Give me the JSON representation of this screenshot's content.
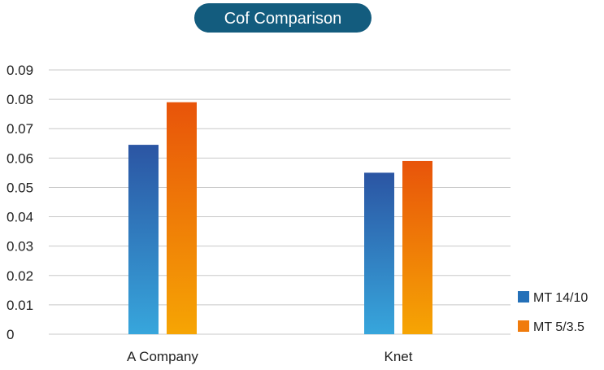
{
  "chart_data": {
    "type": "bar",
    "title": "Cof Comparison",
    "xlabel": "",
    "ylabel": "",
    "categories": [
      "A Company",
      "Knet"
    ],
    "series": [
      {
        "name": "MT 14/10",
        "values": [
          0.0645,
          0.055
        ]
      },
      {
        "name": "MT 5/3.5",
        "values": [
          0.079,
          0.059
        ]
      }
    ],
    "ylim": [
      0,
      0.09
    ],
    "yticks": [
      "0",
      "0.01",
      "0.02",
      "0.03",
      "0.04",
      "0.05",
      "0.06",
      "0.07",
      "0.08",
      "0.09"
    ],
    "grid": true,
    "legend_position": "bottom-right"
  },
  "colors": {
    "title_badge": "#135c7e",
    "grid": "#c8c8c8",
    "series": [
      {
        "top": "#2b55a3",
        "bottom": "#37a6dc",
        "legend": "#2470b8"
      },
      {
        "top": "#e8540a",
        "bottom": "#f6a504",
        "legend": "#f07b0c"
      }
    ]
  }
}
